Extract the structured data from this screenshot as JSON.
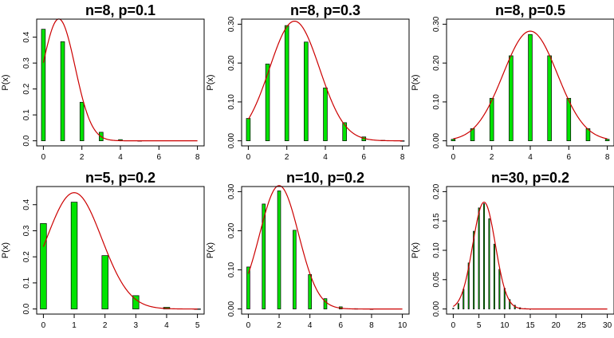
{
  "chart_data": [
    {
      "type": "bar",
      "title": "n=8, p=0.1",
      "ylabel": "P(x)",
      "xlim": [
        0,
        8
      ],
      "x_ticks": [
        0,
        2,
        4,
        6,
        8
      ],
      "ylim": [
        0,
        0.45
      ],
      "y_ticks": [
        0.0,
        0.1,
        0.2,
        0.3,
        0.4
      ],
      "y_tick_labels": [
        "0.0",
        "0.1",
        "0.2",
        "0.3",
        "0.4"
      ],
      "bar_color": "#00e400",
      "curve_color": "#cc0000",
      "x": [
        0,
        1,
        2,
        3,
        4,
        5,
        6,
        7,
        8
      ],
      "values": [
        0.4305,
        0.3826,
        0.1488,
        0.0331,
        0.0046,
        0.0004,
        0.0,
        0.0,
        0.0
      ],
      "normal_curve": {
        "mean": 0.8,
        "sd": 0.8485
      }
    },
    {
      "type": "bar",
      "title": "n=8, p=0.3",
      "ylabel": "P(x)",
      "xlim": [
        0,
        8
      ],
      "x_ticks": [
        0,
        2,
        4,
        6,
        8
      ],
      "ylim": [
        0,
        0.3
      ],
      "y_ticks": [
        0.0,
        0.1,
        0.2,
        0.3
      ],
      "y_tick_labels": [
        "0.00",
        "0.10",
        "0.20",
        "0.30"
      ],
      "bar_color": "#00e400",
      "curve_color": "#cc0000",
      "x": [
        0,
        1,
        2,
        3,
        4,
        5,
        6,
        7,
        8
      ],
      "values": [
        0.0576,
        0.1977,
        0.2965,
        0.2541,
        0.1361,
        0.0467,
        0.01,
        0.0012,
        0.0001
      ],
      "normal_curve": {
        "mean": 2.4,
        "sd": 1.2961
      }
    },
    {
      "type": "bar",
      "title": "n=8, p=0.5",
      "ylabel": "P(x)",
      "xlim": [
        0,
        8
      ],
      "x_ticks": [
        0,
        2,
        4,
        6,
        8
      ],
      "ylim": [
        0,
        0.3
      ],
      "y_ticks": [
        0.0,
        0.1,
        0.2,
        0.3
      ],
      "y_tick_labels": [
        "0.00",
        "0.10",
        "0.20",
        "0.30"
      ],
      "bar_color": "#00e400",
      "curve_color": "#cc0000",
      "x": [
        0,
        1,
        2,
        3,
        4,
        5,
        6,
        7,
        8
      ],
      "values": [
        0.0039,
        0.0313,
        0.1094,
        0.2188,
        0.2734,
        0.2188,
        0.1094,
        0.0313,
        0.0039
      ],
      "normal_curve": {
        "mean": 4.0,
        "sd": 1.4142
      }
    },
    {
      "type": "bar",
      "title": "n=5, p=0.2",
      "ylabel": "P(x)",
      "xlim": [
        0,
        5
      ],
      "x_ticks": [
        0,
        1,
        2,
        3,
        4,
        5
      ],
      "ylim": [
        0,
        0.45
      ],
      "y_ticks": [
        0.0,
        0.1,
        0.2,
        0.3,
        0.4
      ],
      "y_tick_labels": [
        "0.0",
        "0.1",
        "0.2",
        "0.3",
        "0.4"
      ],
      "bar_color": "#00e400",
      "curve_color": "#cc0000",
      "x": [
        0,
        1,
        2,
        3,
        4,
        5
      ],
      "values": [
        0.3277,
        0.4096,
        0.2048,
        0.0512,
        0.0064,
        0.0003
      ],
      "normal_curve": {
        "mean": 1.0,
        "sd": 0.8944
      }
    },
    {
      "type": "bar",
      "title": "n=10, p=0.2",
      "ylabel": "P(x)",
      "xlim": [
        0,
        10
      ],
      "x_ticks": [
        0,
        2,
        4,
        6,
        8,
        10
      ],
      "ylim": [
        0,
        0.3
      ],
      "y_ticks": [
        0.0,
        0.1,
        0.2,
        0.3
      ],
      "y_tick_labels": [
        "0.00",
        "0.10",
        "0.20",
        "0.30"
      ],
      "bar_color": "#00e400",
      "curve_color": "#cc0000",
      "x": [
        0,
        1,
        2,
        3,
        4,
        5,
        6,
        7,
        8,
        9,
        10
      ],
      "values": [
        0.1074,
        0.2684,
        0.302,
        0.2013,
        0.0881,
        0.0264,
        0.0055,
        0.0008,
        0.0001,
        0.0,
        0.0
      ],
      "normal_curve": {
        "mean": 2.0,
        "sd": 1.2649
      }
    },
    {
      "type": "bar",
      "title": "n=30, p=0.2",
      "ylabel": "P(x)",
      "xlim": [
        0,
        30
      ],
      "x_ticks": [
        0,
        5,
        10,
        15,
        20,
        25,
        30
      ],
      "ylim": [
        0,
        0.2
      ],
      "y_ticks": [
        0.0,
        0.05,
        0.1,
        0.15,
        0.2
      ],
      "y_tick_labels": [
        "0.00",
        "0.05",
        "0.10",
        "0.15",
        "0.20"
      ],
      "bar_color": "#00e400",
      "curve_color": "#cc0000",
      "x": [
        0,
        1,
        2,
        3,
        4,
        5,
        6,
        7,
        8,
        9,
        10,
        11,
        12,
        13,
        14,
        15
      ],
      "values": [
        0.0012,
        0.0093,
        0.0337,
        0.0785,
        0.1325,
        0.1723,
        0.1795,
        0.1538,
        0.1106,
        0.0676,
        0.0355,
        0.0161,
        0.0064,
        0.0022,
        0.0007,
        0.0002
      ],
      "normal_curve": {
        "mean": 6.0,
        "sd": 2.1909
      }
    }
  ]
}
